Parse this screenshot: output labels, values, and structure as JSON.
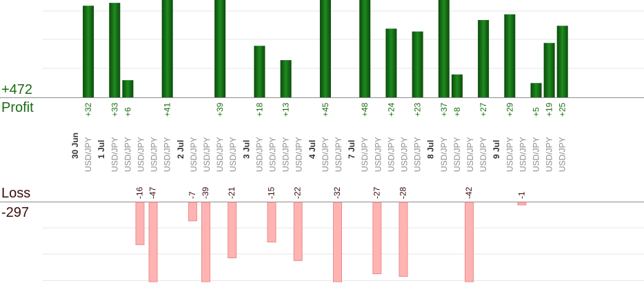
{
  "summary": {
    "profit_total": "+472",
    "profit_label": "Profit",
    "loss_label": "Loss",
    "loss_total": "-297"
  },
  "colors": {
    "profit_bar_dark": "#0b4a0b",
    "profit_bar_light": "#1f8a1f",
    "profit_text": "#1a6b10",
    "loss_bar_fill": "#ffb3b3",
    "loss_bar_edge": "#e88c8c",
    "loss_text": "#3a0a0a",
    "label_gray": "#8c8c8c",
    "grid": "#e6e6e6",
    "baseline": "#8c8c8c"
  },
  "chart_data": {
    "type": "bar",
    "profit_axis_max": 34,
    "loss_axis_max": 30,
    "symbol_label": "USD/JPY",
    "groups": [
      {
        "date": "30 Jun",
        "trades": [
          32
        ]
      },
      {
        "date": "1 Jul",
        "trades": [
          33,
          6,
          -16,
          -47,
          41
        ]
      },
      {
        "date": "2 Jul",
        "trades": [
          -7,
          -39,
          39,
          -21
        ]
      },
      {
        "date": "3 Jul",
        "trades": [
          18,
          -15,
          13,
          -22
        ]
      },
      {
        "date": "4 Jul",
        "trades": [
          45,
          -32
        ]
      },
      {
        "date": "7 Jul",
        "trades": [
          48,
          -27,
          24,
          -28,
          23
        ]
      },
      {
        "date": "8 Jul",
        "trades": [
          37,
          8,
          -42,
          27
        ]
      },
      {
        "date": "9 Jul",
        "trades": [
          29,
          -1,
          5,
          19,
          25
        ]
      }
    ]
  }
}
